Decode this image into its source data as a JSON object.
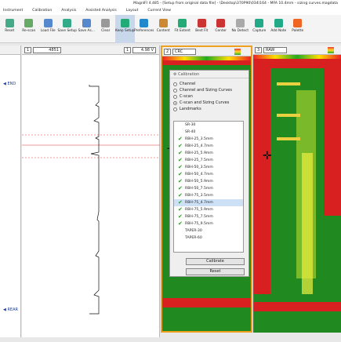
{
  "window": {
    "title": "MagnIFI 4.485 - [Setup from original data file] - \\Desktop\\370P90\\034\\164 - MFA 10.4mm - sizing curves.magdata"
  },
  "menu": [
    "Instrument",
    "Calibration",
    "Analysis",
    "Assisted Analysis",
    "Layout",
    "Current View"
  ],
  "toolbar": [
    "Reset",
    "Re-scan",
    "Load File",
    "Save Setup",
    "Save As...",
    "Clear",
    "Keep Setup",
    "Preferences",
    "Content",
    "Fit Extent",
    "Best Fit",
    "Center",
    "No Detect",
    "Capture",
    "Add Note",
    "Palette"
  ],
  "side_labels": [
    "END",
    "REAR"
  ],
  "panels": [
    {
      "index": "1",
      "channel": "4851",
      "index2": "1",
      "scale": "4.98 V"
    },
    {
      "index": "2",
      "channel": "CRC"
    },
    {
      "index": "3",
      "channel": "RAW"
    }
  ],
  "dialog": {
    "title": "Calibration",
    "options": [
      "Channel",
      "Channel and Sizing Curves",
      "C-scan",
      "C-scan and Sizing Curves",
      "Landmarks"
    ],
    "selected": 3,
    "items": [
      {
        "label": "SR-30",
        "checked": false
      },
      {
        "label": "SR-40",
        "checked": false
      },
      {
        "label": "RBH-25_3.5mm",
        "checked": true
      },
      {
        "label": "RBH-25_4.7mm",
        "checked": true
      },
      {
        "label": "RBH-25_5.9mm",
        "checked": true
      },
      {
        "label": "RBH-25_7.5mm",
        "checked": true
      },
      {
        "label": "RBH-50_3.5mm",
        "checked": true
      },
      {
        "label": "RBH-50_4.7mm",
        "checked": true
      },
      {
        "label": "RBH-50_5.9mm",
        "checked": true
      },
      {
        "label": "RBH-50_7.5mm",
        "checked": true
      },
      {
        "label": "RBH-75_3.5mm",
        "checked": true
      },
      {
        "label": "RBH-75_4.7mm",
        "checked": true
      },
      {
        "label": "RBH-75_5.9mm",
        "checked": true
      },
      {
        "label": "RBH-75_7.5mm",
        "checked": true
      },
      {
        "label": "RBH-75_9.5mm",
        "checked": true
      },
      {
        "label": "TAPER-30",
        "checked": false
      },
      {
        "label": "TAPER-60",
        "checked": false
      }
    ],
    "highlighted": 11,
    "buttons": [
      "Calibrate",
      "Reset"
    ]
  }
}
